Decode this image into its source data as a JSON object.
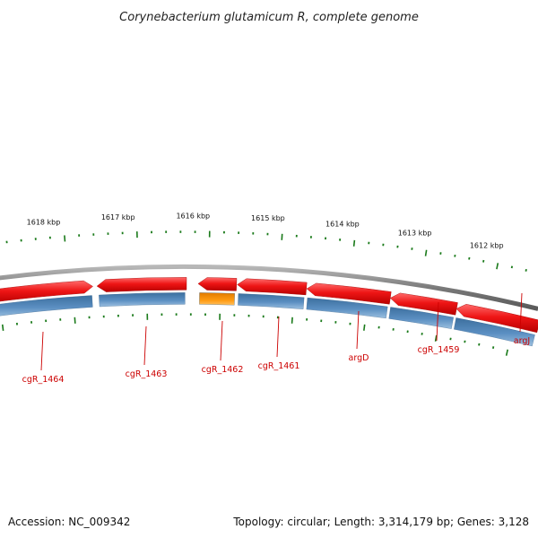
{
  "title": "Corynebacterium glutamicum R, complete genome",
  "footer": {
    "accession": "Accession: NC_009342",
    "summary": "Topology: circular; Length: 3,314,179 bp; Genes: 3,128"
  },
  "ruler": {
    "labels": [
      "1618 kbp",
      "1617 kbp",
      "1616 kbp",
      "1615 kbp",
      "1614 kbp",
      "1613 kbp",
      "1612 kbp"
    ]
  },
  "genes": [
    {
      "label": "cgR_1464",
      "strand": "forward",
      "color": "#e01b1b"
    },
    {
      "label": "cgR_1463",
      "strand": "reverse",
      "color": "#e01b1b"
    },
    {
      "label": "cgR_1462",
      "strand": "reverse",
      "color": "#e01b1b",
      "highlight": "#f5900a"
    },
    {
      "label": "cgR_1461",
      "strand": "reverse",
      "color": "#e01b1b"
    },
    {
      "label": "argD",
      "strand": "reverse",
      "color": "#e01b1b"
    },
    {
      "label": "cgR_1459",
      "strand": "reverse",
      "color": "#e01b1b"
    },
    {
      "label": "argJ",
      "strand": "reverse",
      "color": "#e01b1b"
    }
  ],
  "colors": {
    "backbone": "#8a8a8a",
    "cds_track": "#4a7fb5",
    "tick": "#1a7a1a",
    "label_line": "#cc0000"
  }
}
